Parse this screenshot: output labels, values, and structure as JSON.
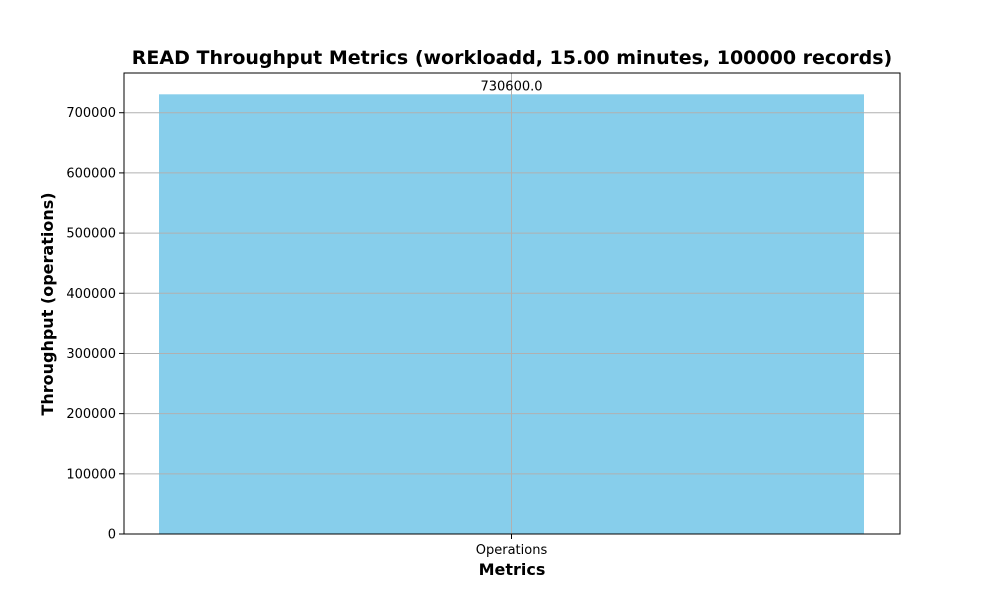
{
  "chart_data": {
    "type": "bar",
    "title": "READ Throughput Metrics (workloadd, 15.00 minutes, 100000 records)",
    "xlabel": "Metrics",
    "ylabel": "Throughput (operations)",
    "categories": [
      "Operations"
    ],
    "values": [
      730600.0
    ],
    "value_labels": [
      "730600.0"
    ],
    "ylim": [
      0,
      766000
    ],
    "yticks": [
      0,
      100000,
      200000,
      300000,
      400000,
      500000,
      600000,
      700000
    ],
    "grid": true,
    "bar_color": "#87ceeb",
    "legend": "none"
  }
}
